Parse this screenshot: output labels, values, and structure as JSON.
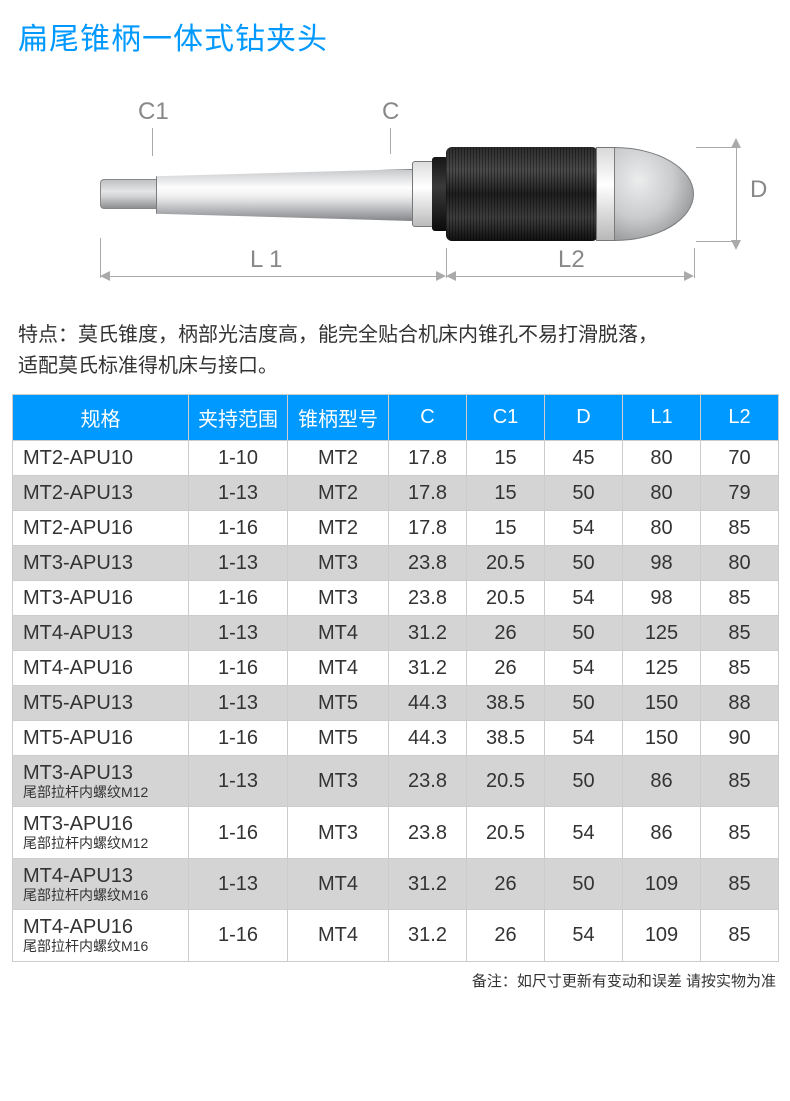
{
  "title": "扁尾锥柄一体式钻夹头",
  "diagram": {
    "labels": {
      "C1": "C1",
      "C": "C",
      "D": "D",
      "L1": "L 1",
      "L2": "L2"
    }
  },
  "features": {
    "line1": "特点：莫氏锥度，柄部光洁度高，能完全贴合机床内锥孔不易打滑脱落，",
    "line2": "适配莫氏标准得机床与接口。"
  },
  "table": {
    "header_bg": "#0099ff",
    "header_fg": "#ffffff",
    "alt_row_bg": "#d4d4d4",
    "columns": [
      "规格",
      "夹持范围",
      "锥柄型号",
      "C",
      "C1",
      "D",
      "L1",
      "L2"
    ],
    "rows": [
      {
        "alt": false,
        "cells": [
          "MT2-APU10",
          "1-10",
          "MT2",
          "17.8",
          "15",
          "45",
          "80",
          "70"
        ],
        "sub": ""
      },
      {
        "alt": true,
        "cells": [
          "MT2-APU13",
          "1-13",
          "MT2",
          "17.8",
          "15",
          "50",
          "80",
          "79"
        ],
        "sub": ""
      },
      {
        "alt": false,
        "cells": [
          "MT2-APU16",
          "1-16",
          "MT2",
          "17.8",
          "15",
          "54",
          "80",
          "85"
        ],
        "sub": ""
      },
      {
        "alt": true,
        "cells": [
          "MT3-APU13",
          "1-13",
          "MT3",
          "23.8",
          "20.5",
          "50",
          "98",
          "80"
        ],
        "sub": ""
      },
      {
        "alt": false,
        "cells": [
          "MT3-APU16",
          "1-16",
          "MT3",
          "23.8",
          "20.5",
          "54",
          "98",
          "85"
        ],
        "sub": ""
      },
      {
        "alt": true,
        "cells": [
          "MT4-APU13",
          "1-13",
          "MT4",
          "31.2",
          "26",
          "50",
          "125",
          "85"
        ],
        "sub": ""
      },
      {
        "alt": false,
        "cells": [
          "MT4-APU16",
          "1-16",
          "MT4",
          "31.2",
          "26",
          "54",
          "125",
          "85"
        ],
        "sub": ""
      },
      {
        "alt": true,
        "cells": [
          "MT5-APU13",
          "1-13",
          "MT5",
          "44.3",
          "38.5",
          "50",
          "150",
          "88"
        ],
        "sub": ""
      },
      {
        "alt": false,
        "cells": [
          "MT5-APU16",
          "1-16",
          "MT5",
          "44.3",
          "38.5",
          "54",
          "150",
          "90"
        ],
        "sub": ""
      },
      {
        "alt": true,
        "cells": [
          "MT3-APU13",
          "1-13",
          "MT3",
          "23.8",
          "20.5",
          "50",
          "86",
          "85"
        ],
        "sub": "尾部拉杆内螺纹M12"
      },
      {
        "alt": false,
        "cells": [
          "MT3-APU16",
          "1-16",
          "MT3",
          "23.8",
          "20.5",
          "54",
          "86",
          "85"
        ],
        "sub": "尾部拉杆内螺纹M12"
      },
      {
        "alt": true,
        "cells": [
          "MT4-APU13",
          "1-13",
          "MT4",
          "31.2",
          "26",
          "50",
          "109",
          "85"
        ],
        "sub": "尾部拉杆内螺纹M16"
      },
      {
        "alt": false,
        "cells": [
          "MT4-APU16",
          "1-16",
          "MT4",
          "31.2",
          "26",
          "54",
          "109",
          "85"
        ],
        "sub": "尾部拉杆内螺纹M16"
      }
    ]
  },
  "footnote": "备注：如尺寸更新有变动和误差 请按实物为准"
}
